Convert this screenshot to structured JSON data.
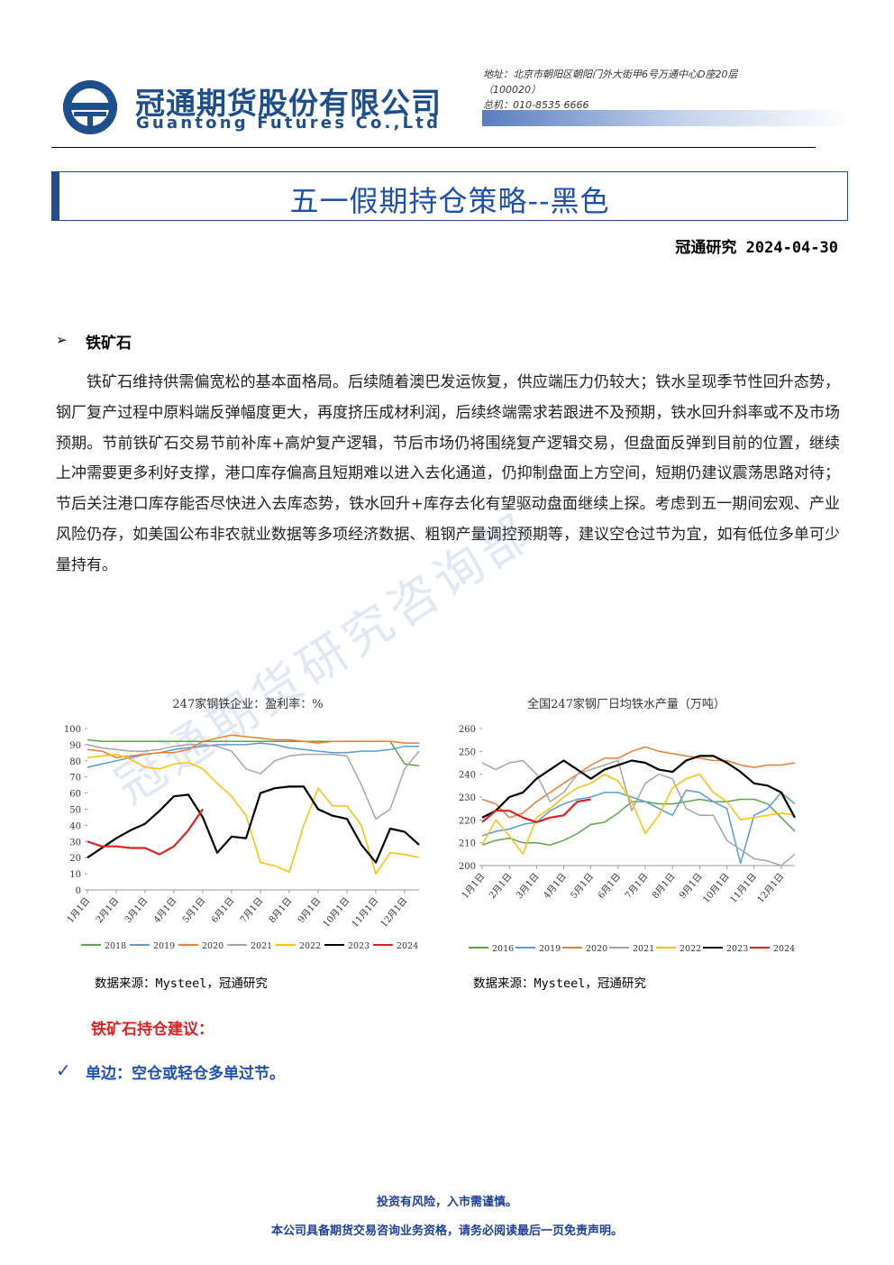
{
  "header": {
    "company_cn": "冠通期货股份有限公司",
    "company_en": "Guantong Futures Co.,Ltd",
    "address": [
      "地址：北京市朝阳区朝阳门外大街甲6号万通中心D座20层",
      "（100020）",
      "总机：010-8535 6666"
    ]
  },
  "title": "五一假期持仓策略--黑色",
  "byline": "冠通研究 2024-04-30",
  "watermark": "冠通期货研究咨询部",
  "section": {
    "heading": "铁矿石",
    "paragraph": "铁矿石维持供需偏宽松的基本面格局。后续随着澳巴发运恢复，供应端压力仍较大；铁水呈现季节性回升态势，钢厂复产过程中原料端反弹幅度更大，再度挤压成材利润，后续终端需求若跟进不及预期，铁水回升斜率或不及市场预期。节前铁矿石交易节前补库+高炉复产逻辑，节后市场仍将围绕复产逻辑交易，但盘面反弹到目前的位置，继续上冲需要更多利好支撑，港口库存偏高且短期难以进入去化通道，仍抑制盘面上方空间，短期仍建议震荡思路对待；节后关注港口库存能否尽快进入去库态势，铁水回升+库存去化有望驱动盘面继续上探。考虑到五一期间宏观、产业风险仍存，如美国公布非农就业数据等多项经济数据、粗钢产量调控预期等，建议空仓过节为宜，如有低位多单可少量持有。"
  },
  "charts": [
    {
      "type": "line",
      "title": "247家钢铁企业：盈利率：%",
      "source": "数据来源：Mysteel，冠通研究",
      "categories": [
        "1月1日",
        null,
        "2月1日",
        null,
        "3月1日",
        null,
        "4月1日",
        null,
        "5月1日",
        null,
        "6月1日",
        null,
        "7月1日",
        null,
        "8月1日",
        null,
        "9月1日",
        null,
        "10月1日",
        null,
        "11月1日",
        null,
        "12月1日",
        null
      ],
      "ylim": [
        0,
        100
      ],
      "yticks": [
        0,
        10,
        20,
        30,
        40,
        50,
        60,
        70,
        80,
        90,
        100
      ],
      "series": [
        {
          "name": "2018",
          "color": "#5aa845",
          "values": [
            93,
            92,
            92,
            92,
            92,
            92,
            92,
            92,
            92,
            92,
            92,
            92,
            92,
            92,
            92,
            92,
            92,
            92,
            92,
            92,
            92,
            92,
            78,
            77
          ]
        },
        {
          "name": "2019",
          "color": "#5b9bd5",
          "values": [
            76,
            78,
            80,
            82,
            84,
            85,
            87,
            88,
            89,
            90,
            90,
            90,
            91,
            90,
            88,
            87,
            86,
            85,
            85,
            86,
            86,
            87,
            89,
            89
          ]
        },
        {
          "name": "2020",
          "color": "#ed7d31",
          "values": [
            87,
            86,
            82,
            83,
            84,
            85,
            85,
            87,
            92,
            94,
            96,
            95,
            94,
            93,
            93,
            92,
            91,
            92,
            92,
            92,
            92,
            92,
            91,
            91
          ]
        },
        {
          "name": "2021",
          "color": "#a5a5a5",
          "values": [
            90,
            88,
            87,
            86,
            86,
            87,
            89,
            90,
            90,
            89,
            86,
            75,
            72,
            80,
            83,
            84,
            84,
            84,
            83,
            65,
            44,
            50,
            75,
            86
          ]
        },
        {
          "name": "2022",
          "color": "#ffc000",
          "values": [
            82,
            83,
            84,
            81,
            76,
            75,
            78,
            79,
            75,
            66,
            58,
            46,
            17,
            15,
            11,
            40,
            63,
            52,
            52,
            40,
            10,
            23,
            22,
            20
          ]
        },
        {
          "name": "2023",
          "color": "#000000",
          "values": [
            20,
            26,
            32,
            37,
            41,
            49,
            58,
            59,
            45,
            23,
            33,
            32,
            60,
            63,
            64,
            64,
            50,
            46,
            44,
            28,
            17,
            38,
            36,
            28
          ]
        },
        {
          "name": "2024",
          "color": "#e02020",
          "values": [
            30,
            27,
            27,
            26,
            26,
            22,
            27,
            37,
            50,
            null,
            null,
            null,
            null,
            null,
            null,
            null,
            null,
            null,
            null,
            null,
            null,
            null,
            null,
            null
          ]
        }
      ]
    },
    {
      "type": "line",
      "title": "全国247家钢厂日均铁水产量（万吨）",
      "source": "数据来源：Mysteel，冠通研究",
      "categories": [
        "1月1日",
        null,
        "2月1日",
        null,
        "3月1日",
        null,
        "4月1日",
        null,
        "5月1日",
        null,
        "6月1日",
        null,
        "7月1日",
        null,
        "8月1日",
        null,
        "9月1日",
        null,
        "10月1日",
        null,
        "11月1日",
        null,
        "12月1日",
        null
      ],
      "ylim": [
        200,
        260
      ],
      "yticks": [
        200,
        210,
        220,
        230,
        240,
        250,
        260
      ],
      "series": [
        {
          "name": "2016",
          "color": "#5aa845",
          "values": [
            209,
            211,
            212,
            210,
            210,
            209,
            211,
            214,
            218,
            219,
            223,
            228,
            228,
            227,
            227,
            228,
            229,
            228,
            228,
            229,
            229,
            227,
            221,
            215
          ]
        },
        {
          "name": "2019",
          "color": "#5b9bd5",
          "values": [
            213,
            215,
            216,
            218,
            219,
            224,
            227,
            229,
            230,
            232,
            232,
            230,
            228,
            225,
            222,
            233,
            232,
            228,
            225,
            201,
            222,
            225,
            232,
            227
          ]
        },
        {
          "name": "2020",
          "color": "#ed7d31",
          "values": [
            229,
            227,
            221,
            223,
            228,
            232,
            236,
            240,
            244,
            247,
            247,
            250,
            252,
            250,
            249,
            248,
            247,
            246,
            246,
            244,
            243,
            244,
            244,
            245
          ]
        },
        {
          "name": "2021",
          "color": "#a5a5a5",
          "values": [
            245,
            242,
            245,
            246,
            240,
            228,
            232,
            240,
            242,
            244,
            246,
            224,
            236,
            240,
            238,
            225,
            222,
            222,
            211,
            207,
            203,
            202,
            200,
            205
          ]
        },
        {
          "name": "2022",
          "color": "#ffc000",
          "values": [
            209,
            220,
            213,
            205,
            221,
            225,
            230,
            234,
            236,
            240,
            237,
            228,
            214,
            222,
            234,
            238,
            240,
            232,
            228,
            220,
            221,
            222,
            223,
            222
          ]
        },
        {
          "name": "2023",
          "color": "#000000",
          "values": [
            221,
            224,
            230,
            232,
            238,
            242,
            246,
            242,
            238,
            242,
            244,
            246,
            245,
            242,
            241,
            246,
            248,
            248,
            245,
            241,
            236,
            235,
            232,
            221
          ]
        },
        {
          "name": "2024",
          "color": "#e02020",
          "values": [
            219,
            224,
            224,
            221,
            219,
            221,
            222,
            228,
            229,
            null,
            null,
            null,
            null,
            null,
            null,
            null,
            null,
            null,
            null,
            null,
            null,
            null,
            null,
            null
          ]
        }
      ]
    }
  ],
  "advice": {
    "heading": "铁矿石持仓建议：",
    "items": [
      "单边：空仓或轻仓多单过节。"
    ]
  },
  "footer": [
    "投资有风险，入市需谨慎。",
    "本公司具备期货交易咨询业务资格，请务必阅读最后一页免责声明。"
  ]
}
